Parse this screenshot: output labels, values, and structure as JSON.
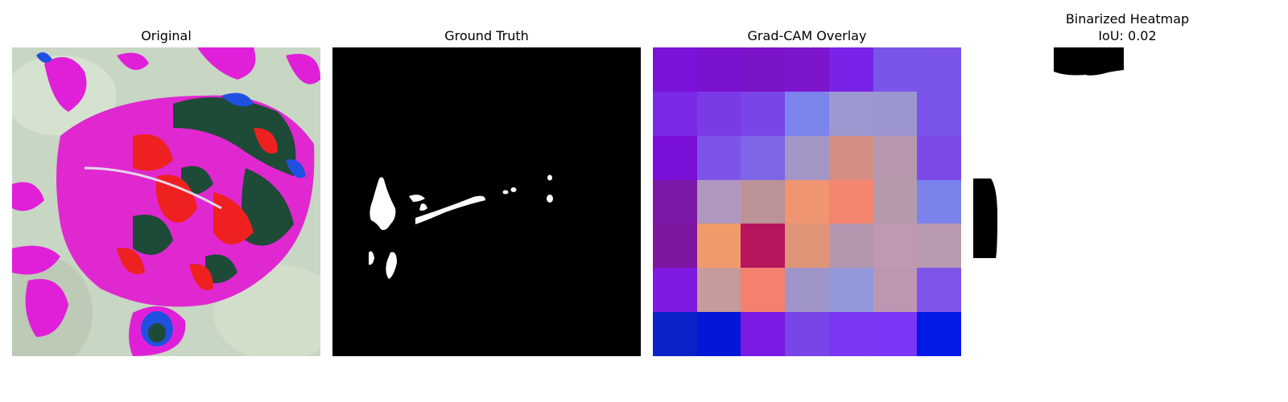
{
  "panels": {
    "original": {
      "title": "Original"
    },
    "ground_truth": {
      "title": "Ground Truth"
    },
    "gradcam": {
      "title": "Grad-CAM Overlay",
      "grid_colors": [
        [
          "#7a12d8",
          "#7a12d0",
          "#7b14c8",
          "#7b16cc",
          "#7a23e8",
          "#7b55ea",
          "#7b54ea"
        ],
        [
          "#7a2ae6",
          "#7a3ae6",
          "#7a45e8",
          "#7b84ec",
          "#9b98d0",
          "#9c96cf",
          "#7b55ea"
        ],
        [
          "#7b10d8",
          "#7d54e8",
          "#7e66e6",
          "#a396c4",
          "#d48f82",
          "#b797ad",
          "#7b4ae8"
        ],
        [
          "#7c18a8",
          "#b097bd",
          "#bb9298",
          "#ef9571",
          "#f4856e",
          "#b59aae",
          "#7c82ec"
        ],
        [
          "#7f16a2",
          "#f19a69",
          "#b5165e",
          "#e09477",
          "#b497ae",
          "#bf98b2",
          "#b89bb0"
        ],
        [
          "#7f1ae0",
          "#c79a9b",
          "#f48070",
          "#a095c8",
          "#9298d9",
          "#bd97b2",
          "#7e55ea"
        ],
        [
          "#0a22c8",
          "#0417d8",
          "#7a1ae2",
          "#7a45e8",
          "#7a36f0",
          "#7a36f4",
          "#0319e6"
        ]
      ]
    },
    "binarized": {
      "title": "Binarized Heatmap",
      "subtitle": "IoU: 0.02"
    }
  }
}
